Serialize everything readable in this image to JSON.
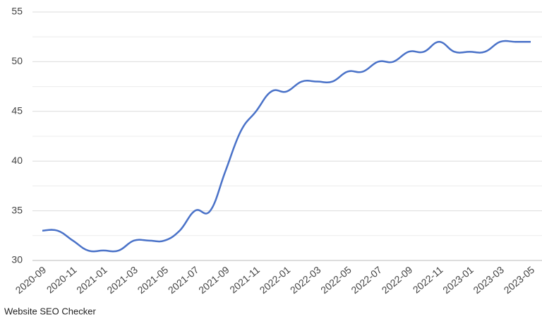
{
  "chart_data": {
    "type": "line",
    "categories": [
      "2020-09",
      null,
      "2020-11",
      null,
      "2021-01",
      null,
      "2021-03",
      null,
      "2021-05",
      null,
      "2021-07",
      null,
      "2021-09",
      null,
      "2021-11",
      null,
      "2022-01",
      null,
      "2022-03",
      null,
      "2022-05",
      null,
      "2022-07",
      null,
      "2022-09",
      null,
      "2022-11",
      null,
      "2023-01",
      null,
      "2023-03",
      null,
      "2023-05"
    ],
    "series": [
      {
        "color": "#4a72c8",
        "values": [
          33,
          33,
          32,
          31,
          31,
          31,
          32,
          32,
          32,
          33,
          35,
          35,
          39,
          43,
          45,
          47,
          47,
          48,
          48,
          48,
          49,
          49,
          50,
          50,
          51,
          51,
          52,
          51,
          51,
          51,
          52,
          52,
          52
        ]
      }
    ],
    "ylim": [
      30,
      55
    ],
    "yticks": [
      30,
      35,
      40,
      45,
      50,
      55
    ],
    "grid": true,
    "minor_grid": true,
    "source": "Website SEO Checker"
  }
}
